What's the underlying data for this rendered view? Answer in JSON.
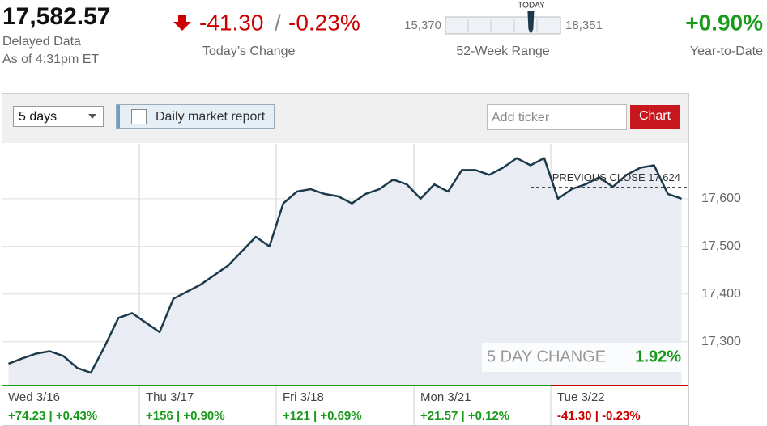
{
  "header": {
    "price": {
      "value": 17582.57,
      "label": "17,582.57"
    },
    "status": "Delayed Data",
    "as_of": "As of 4:31pm ET",
    "change": "-41.30",
    "separator": "/",
    "change_pct": "-0.23%",
    "change_label": "Today’s Change",
    "range": {
      "low": {
        "value": 15370,
        "label": "15,370"
      },
      "high": {
        "value": 18351,
        "label": "18,351"
      },
      "marker_label": "TODAY",
      "label": "52-Week Range"
    },
    "ytd": "+0.90%",
    "ytd_label": "Year-to-Date"
  },
  "toolbar": {
    "period": "5 days",
    "checkbox": "Daily market report",
    "ticker_placeholder": "Add ticker",
    "button": "Chart"
  },
  "chart_data": {
    "type": "line",
    "color": "#1c3a4c",
    "values": [
      17254,
      17265,
      17275,
      17280,
      17270,
      17245,
      17235,
      17290,
      17350,
      17360,
      17340,
      17320,
      17390,
      17405,
      17420,
      17440,
      17460,
      17490,
      17520,
      17500,
      17590,
      17615,
      17620,
      17610,
      17605,
      17590,
      17610,
      17620,
      17640,
      17630,
      17600,
      17630,
      17615,
      17660,
      17660,
      17650,
      17665,
      17685,
      17670,
      17685,
      17600,
      17620,
      17630,
      17645,
      17625,
      17650,
      17665,
      17670,
      17610,
      17600
    ],
    "ylim": [
      17208,
      17715
    ],
    "yticks": [
      {
        "value": 17300,
        "label": "17,300"
      },
      {
        "value": 17400,
        "label": "17,400"
      },
      {
        "value": 17500,
        "label": "17,500"
      },
      {
        "value": 17600,
        "label": "17,600"
      }
    ],
    "grid": true,
    "previous_close": {
      "value": 17624,
      "label": "PREVIOUS CLOSE 17,624"
    },
    "five_day_change": {
      "label": "5 DAY CHANGE",
      "value": "1.92%"
    },
    "days": [
      {
        "label": "Wed 3/16",
        "change": "+74.23 | +0.43%",
        "color": "#1a9a1a"
      },
      {
        "label": "Thu 3/17",
        "change": "+156 | +0.90%",
        "color": "#1a9a1a"
      },
      {
        "label": "Fri 3/18",
        "change": "+121 | +0.69%",
        "color": "#1a9a1a"
      },
      {
        "label": "Mon 3/21",
        "change": "+21.57 | +0.12%",
        "color": "#1a9a1a"
      },
      {
        "label": "Tue 3/22",
        "change": "-41.30 | -0.23%",
        "color": "#cc0000"
      }
    ]
  }
}
